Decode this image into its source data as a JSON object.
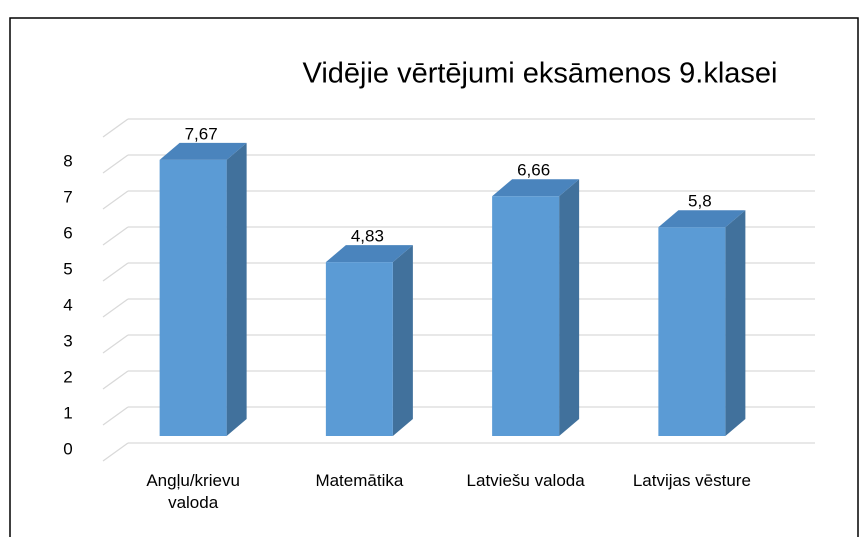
{
  "chart_data": {
    "type": "bar3d",
    "title": "Vidējie vērtējumi eksāmenos 9.klasei",
    "categories": [
      "Angļu/krievu valoda",
      "Matemātika",
      "Latviešu valoda",
      "Latvijas vēsture"
    ],
    "values": [
      7.67,
      4.83,
      6.66,
      5.8
    ],
    "value_labels": [
      "7,67",
      "4,83",
      "6,66",
      "5,8"
    ],
    "color": "#5b9bd5",
    "ylim": [
      0,
      9
    ],
    "yticks": [
      0,
      1,
      2,
      3,
      4,
      5,
      6,
      7,
      8
    ],
    "grid": true
  }
}
